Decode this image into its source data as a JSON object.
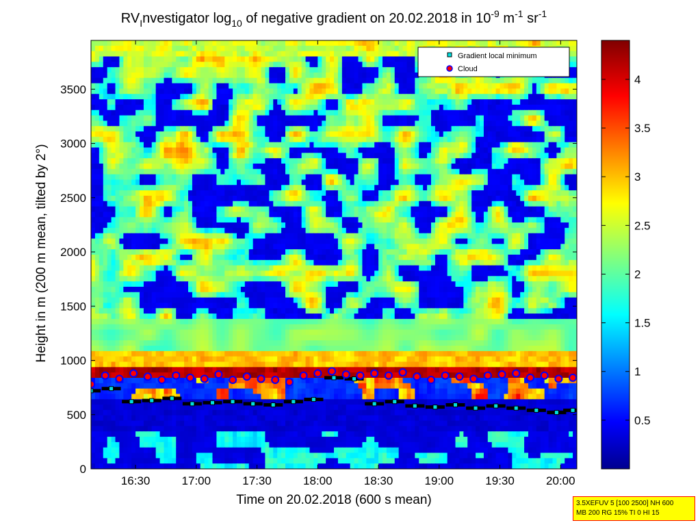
{
  "chart_data": {
    "type": "heatmap",
    "title_parts": [
      "RV",
      "I",
      "nvestigator log",
      "10",
      " of negative gradient on 20.02.2018 in 10",
      "-9",
      " m",
      "-1",
      " sr",
      "-1"
    ],
    "xlabel": "Time on 20.02.2018 (600 s mean)",
    "ylabel": "Height in m (200 m mean, tilted by 2°)",
    "x_range": [
      "16:08",
      "20:08"
    ],
    "xlim_minutes": [
      968,
      1208
    ],
    "ylim": [
      0,
      3950
    ],
    "x_ticks": [
      {
        "label": "16:30",
        "minutes": 990
      },
      {
        "label": "17:00",
        "minutes": 1020
      },
      {
        "label": "17:30",
        "minutes": 1050
      },
      {
        "label": "18:00",
        "minutes": 1080
      },
      {
        "label": "18:30",
        "minutes": 1110
      },
      {
        "label": "19:00",
        "minutes": 1140
      },
      {
        "label": "19:30",
        "minutes": 1170
      },
      {
        "label": "20:00",
        "minutes": 1200
      }
    ],
    "y_ticks": [
      0,
      500,
      1000,
      1500,
      2000,
      2500,
      3000,
      3500
    ],
    "colorbar": {
      "range": [
        0,
        4.4
      ],
      "ticks": [
        0.5,
        1,
        1.5,
        2,
        2.5,
        3,
        3.5,
        4
      ],
      "colormap": "jet"
    },
    "legend": {
      "position": "top-right",
      "entries": [
        {
          "label": "Gradient local minimum",
          "marker": "square",
          "color": "#00e0e0"
        },
        {
          "label": "Cloud",
          "marker": "circle",
          "color": "#ff0000",
          "edge": "#0000ff"
        }
      ]
    },
    "series": [
      {
        "name": "Cloud",
        "x_minutes": [
          968,
          975,
          982,
          989,
          996,
          1003,
          1010,
          1017,
          1024,
          1031,
          1038,
          1045,
          1052,
          1059,
          1066,
          1073,
          1080,
          1087,
          1094,
          1101,
          1108,
          1115,
          1122,
          1129,
          1136,
          1143,
          1150,
          1157,
          1164,
          1171,
          1178,
          1185,
          1192,
          1199,
          1206
        ],
        "y": [
          780,
          860,
          830,
          880,
          850,
          820,
          860,
          840,
          830,
          870,
          820,
          850,
          830,
          820,
          800,
          860,
          880,
          900,
          870,
          860,
          880,
          860,
          890,
          850,
          820,
          860,
          850,
          830,
          860,
          870,
          880,
          840,
          860,
          830,
          840
        ]
      },
      {
        "name": "Gradient local minimum",
        "x_minutes": [
          968,
          978,
          988,
          998,
          1008,
          1018,
          1028,
          1038,
          1048,
          1058,
          1068,
          1078,
          1088,
          1098,
          1108,
          1118,
          1128,
          1138,
          1148,
          1158,
          1168,
          1178,
          1188,
          1198,
          1206
        ],
        "y": [
          720,
          740,
          620,
          630,
          650,
          600,
          610,
          620,
          600,
          590,
          620,
          640,
          840,
          830,
          600,
          620,
          580,
          570,
          590,
          560,
          580,
          560,
          540,
          520,
          540
        ]
      }
    ]
  },
  "info_box": {
    "line1": "3.5XEFUV 5 [100 2500] NH 600",
    "line2": "MB 200 RG 15% TI 0 HI 15"
  }
}
